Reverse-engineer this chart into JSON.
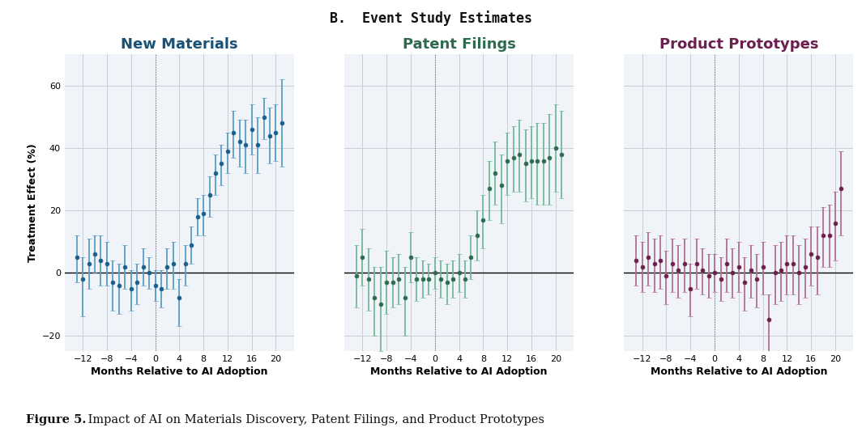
{
  "title": "B.  Event Study Estimates",
  "caption_bold": "Figure 5.",
  "caption_rest": " Impact of AI on Materials Discovery, Patent Filings, and Product Prototypes",
  "panels": [
    {
      "title": "New Materials",
      "title_color": "#1a5276",
      "dot_color": "#1a5e8a",
      "ci_color": "#5b9cc4",
      "x": [
        -13,
        -12,
        -11,
        -10,
        -9,
        -8,
        -7,
        -6,
        -5,
        -4,
        -3,
        -2,
        -1,
        0,
        1,
        2,
        3,
        4,
        5,
        6,
        7,
        8,
        9,
        10,
        11,
        12,
        13,
        14,
        15,
        16,
        17,
        18,
        19,
        20,
        21
      ],
      "y": [
        5,
        -2,
        3,
        6,
        4,
        3,
        -3,
        -4,
        2,
        -5,
        -3,
        2,
        0,
        -4,
        -5,
        2,
        3,
        -8,
        3,
        9,
        18,
        19,
        25,
        32,
        35,
        39,
        45,
        42,
        41,
        46,
        41,
        50,
        44,
        45,
        48
      ],
      "yerr_lo": [
        8,
        12,
        8,
        6,
        8,
        7,
        9,
        9,
        7,
        7,
        7,
        6,
        5,
        5,
        6,
        7,
        8,
        9,
        7,
        6,
        6,
        7,
        7,
        7,
        7,
        7,
        8,
        8,
        9,
        8,
        9,
        7,
        9,
        9,
        14
      ],
      "yerr_hi": [
        7,
        7,
        8,
        6,
        8,
        7,
        7,
        7,
        7,
        6,
        6,
        6,
        5,
        5,
        6,
        6,
        7,
        6,
        6,
        6,
        6,
        6,
        6,
        6,
        6,
        6,
        7,
        7,
        8,
        8,
        9,
        6,
        9,
        9,
        14
      ],
      "ylabel": "Treatment Effect (%)",
      "xlabel": "Months Relative to AI Adoption",
      "ylim": [
        -25,
        70
      ],
      "yticks": [
        -20,
        0,
        20,
        40,
        60
      ],
      "xticks": [
        -12,
        -8,
        -4,
        0,
        4,
        8,
        12,
        16,
        20
      ],
      "show_ylabel": true
    },
    {
      "title": "Patent Filings",
      "title_color": "#2d6a4f",
      "dot_color": "#2d6a4f",
      "ci_color": "#74b89a",
      "x": [
        -13,
        -12,
        -11,
        -10,
        -9,
        -8,
        -7,
        -6,
        -5,
        -4,
        -3,
        -2,
        -1,
        0,
        1,
        2,
        3,
        4,
        5,
        6,
        7,
        8,
        9,
        10,
        11,
        12,
        13,
        14,
        15,
        16,
        17,
        18,
        19,
        20,
        21
      ],
      "y": [
        -1,
        5,
        -2,
        -8,
        -10,
        -3,
        -3,
        -2,
        -8,
        5,
        -2,
        -2,
        -2,
        0,
        -2,
        -3,
        -2,
        0,
        -2,
        5,
        12,
        17,
        27,
        32,
        28,
        36,
        37,
        38,
        35,
        36,
        36,
        36,
        37,
        40,
        38
      ],
      "yerr_lo": [
        10,
        9,
        10,
        12,
        15,
        10,
        8,
        8,
        12,
        8,
        7,
        6,
        5,
        5,
        6,
        7,
        6,
        6,
        6,
        7,
        8,
        9,
        10,
        10,
        12,
        11,
        11,
        12,
        12,
        12,
        14,
        14,
        15,
        14,
        14
      ],
      "yerr_hi": [
        10,
        9,
        10,
        10,
        12,
        10,
        8,
        8,
        10,
        8,
        7,
        6,
        5,
        5,
        6,
        6,
        6,
        6,
        6,
        7,
        8,
        8,
        9,
        10,
        10,
        9,
        10,
        11,
        11,
        11,
        12,
        12,
        14,
        14,
        14
      ],
      "ylabel": "",
      "xlabel": "Months Relative to AI Adoption",
      "ylim": [
        -25,
        70
      ],
      "yticks": [
        -20,
        0,
        20,
        40,
        60
      ],
      "xticks": [
        -12,
        -8,
        -4,
        0,
        4,
        8,
        12,
        16,
        20
      ],
      "show_ylabel": false
    },
    {
      "title": "Product Prototypes",
      "title_color": "#6b1f4e",
      "dot_color": "#6b1f4e",
      "ci_color": "#b07090",
      "x": [
        -13,
        -12,
        -11,
        -10,
        -9,
        -8,
        -7,
        -6,
        -5,
        -4,
        -3,
        -2,
        -1,
        0,
        1,
        2,
        3,
        4,
        5,
        6,
        7,
        8,
        9,
        10,
        11,
        12,
        13,
        14,
        15,
        16,
        17,
        18,
        19,
        20,
        21
      ],
      "y": [
        4,
        2,
        5,
        3,
        4,
        -1,
        3,
        1,
        3,
        -5,
        3,
        1,
        -1,
        0,
        -2,
        3,
        0,
        2,
        -3,
        1,
        -2,
        2,
        -15,
        0,
        1,
        3,
        3,
        0,
        2,
        6,
        5,
        12,
        12,
        16,
        27
      ],
      "yerr_lo": [
        8,
        8,
        9,
        9,
        9,
        9,
        9,
        9,
        9,
        9,
        8,
        8,
        7,
        6,
        7,
        9,
        8,
        8,
        9,
        9,
        9,
        9,
        12,
        10,
        10,
        10,
        10,
        10,
        10,
        10,
        12,
        10,
        10,
        12,
        15
      ],
      "yerr_hi": [
        8,
        8,
        8,
        8,
        8,
        8,
        8,
        8,
        8,
        8,
        8,
        7,
        7,
        6,
        7,
        8,
        8,
        8,
        8,
        8,
        8,
        8,
        8,
        9,
        9,
        9,
        9,
        9,
        9,
        9,
        10,
        9,
        10,
        10,
        12
      ],
      "ylabel": "",
      "xlabel": "Months Relative to AI Adoption",
      "ylim": [
        -25,
        70
      ],
      "yticks": [
        -20,
        0,
        20,
        40,
        60
      ],
      "xticks": [
        -12,
        -8,
        -4,
        0,
        4,
        8,
        12,
        16,
        20
      ],
      "show_ylabel": false
    }
  ],
  "bg_color": "#f0f3f8",
  "grid_color": "#c8cdd8",
  "fig_bg": "#ffffff",
  "vline_color": "#777777"
}
